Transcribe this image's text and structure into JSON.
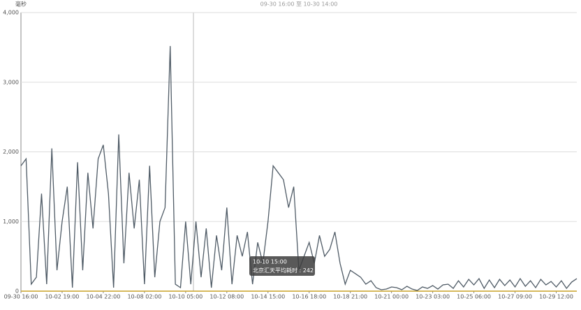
{
  "chart_data": {
    "type": "line",
    "title": "09-30 16:00 至 10-30 14:00",
    "y_label": "毫秒",
    "categories": [
      "09-30 16:00",
      null,
      null,
      null,
      null,
      null,
      null,
      null,
      "10-02 19:00",
      null,
      null,
      null,
      null,
      null,
      null,
      null,
      "10-04 22:00",
      null,
      null,
      null,
      null,
      null,
      null,
      null,
      "10-08 02:00",
      null,
      null,
      null,
      null,
      null,
      null,
      null,
      "10-10 05:00",
      null,
      null,
      null,
      null,
      null,
      null,
      null,
      "10-12 08:00",
      null,
      null,
      null,
      null,
      null,
      null,
      null,
      "10-14 15:00",
      null,
      null,
      null,
      null,
      null,
      null,
      null,
      "10-16 18:00",
      null,
      null,
      null,
      null,
      null,
      null,
      null,
      "10-18 21:00",
      null,
      null,
      null,
      null,
      null,
      null,
      null,
      "10-21 00:00",
      null,
      null,
      null,
      null,
      null,
      null,
      null,
      "10-23 03:00",
      null,
      null,
      null,
      null,
      null,
      null,
      null,
      "10-25 06:00",
      null,
      null,
      null,
      null,
      null,
      null,
      null,
      "10-27 09:00",
      null,
      null,
      null,
      null,
      null,
      null,
      null,
      "10-29 12:00",
      null,
      null,
      null,
      null
    ],
    "series": [
      {
        "name": "北京汇天平均耗时",
        "color": "#4f5b66",
        "values": [
          1800,
          1900,
          100,
          200,
          1400,
          100,
          2050,
          300,
          1000,
          1500,
          50,
          1850,
          300,
          1700,
          900,
          1900,
          2100,
          1400,
          50,
          2250,
          400,
          1700,
          900,
          1600,
          100,
          1800,
          200,
          1000,
          1200,
          3520,
          100,
          50,
          1000,
          100,
          1000,
          200,
          900,
          50,
          800,
          300,
          1200,
          100,
          800,
          500,
          850,
          100,
          700,
          400,
          1000,
          1800,
          1700,
          1600,
          1200,
          1500,
          300,
          500,
          700,
          400,
          800,
          500,
          600,
          850,
          400,
          100,
          300,
          250,
          200,
          100,
          150,
          50,
          20,
          30,
          60,
          50,
          20,
          70,
          30,
          10,
          60,
          40,
          80,
          30,
          90,
          100,
          40,
          150,
          60,
          170,
          90,
          180,
          40,
          160,
          50,
          170,
          80,
          160,
          60,
          180,
          70,
          150,
          50,
          170,
          90,
          140,
          60,
          150,
          40,
          130,
          180
        ]
      },
      {
        "color": "#c9a227",
        "values": [
          0,
          0,
          0,
          0,
          0,
          0,
          0,
          0,
          0,
          0,
          0,
          0,
          0,
          0,
          0,
          0,
          0,
          0,
          0,
          0,
          0,
          0,
          0,
          0,
          0,
          0,
          0,
          0,
          0,
          0,
          0,
          0,
          0,
          0,
          0,
          0,
          0,
          0,
          0,
          0,
          0,
          0,
          0,
          0,
          0,
          0,
          0,
          0,
          0,
          0,
          0,
          0,
          0,
          0,
          0,
          0,
          0,
          0,
          0,
          0,
          0,
          0,
          0,
          0,
          0,
          0,
          0,
          0,
          0,
          0,
          0,
          0,
          0,
          0,
          0,
          0,
          0,
          0,
          0,
          0,
          0,
          0,
          0,
          0,
          0,
          0,
          0,
          0,
          0,
          0,
          0,
          0,
          0,
          0,
          0,
          0,
          0,
          0,
          0,
          0,
          0,
          0,
          0,
          0,
          0,
          0,
          0,
          0,
          0
        ]
      }
    ],
    "ylim": [
      0,
      4000
    ],
    "yticks": [
      0,
      {
        "value": 1000,
        "label": "1,000"
      },
      {
        "value": 2000,
        "label": "2,000"
      },
      {
        "value": 3000,
        "label": "3,000"
      },
      {
        "value": 4000,
        "label": "4,000"
      }
    ],
    "grid": true,
    "tooltip": {
      "title": "10-10 15:00",
      "value": 242
    }
  }
}
